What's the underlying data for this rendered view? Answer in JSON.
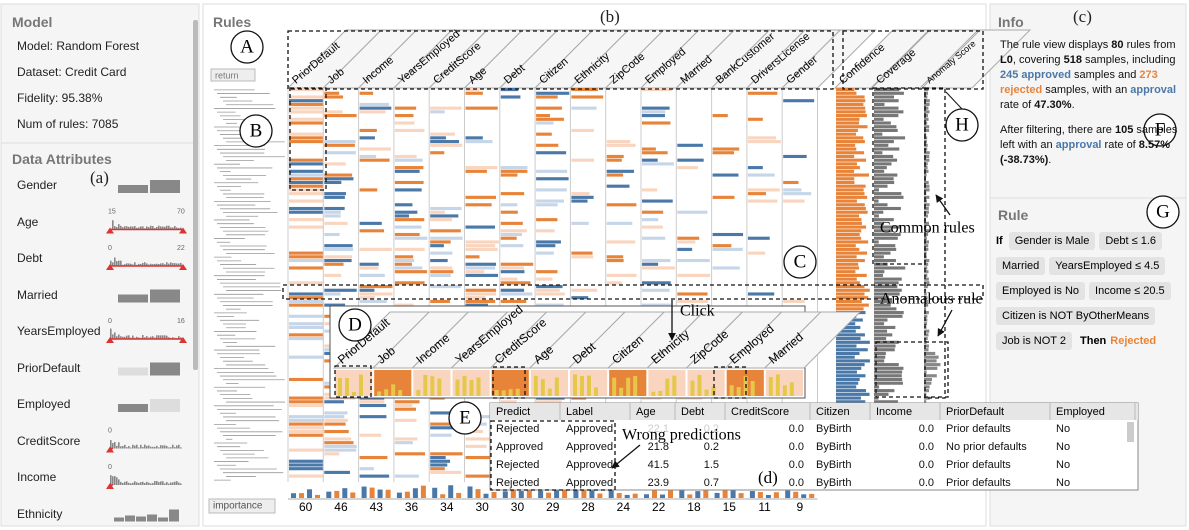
{
  "model": {
    "title": "Model",
    "lines": [
      "Model: Random Forest",
      "Dataset: Credit Card",
      "Fidelity: 95.38%",
      "Num of rules: 7085"
    ]
  },
  "data_attributes": {
    "title": "Data Attributes",
    "marker": "(a)",
    "items": [
      {
        "name": "Gender"
      },
      {
        "name": "Age",
        "min": 15,
        "max": 70
      },
      {
        "name": "Debt",
        "min": 0,
        "max": 22
      },
      {
        "name": "Married"
      },
      {
        "name": "YearsEmployed",
        "min": 0,
        "max": 16
      },
      {
        "name": "PriorDefault"
      },
      {
        "name": "Employed"
      },
      {
        "name": "CreditScore",
        "min": 0
      },
      {
        "name": "Income",
        "min": 0
      },
      {
        "name": "Ethnicity"
      }
    ]
  },
  "rules": {
    "title": "Rules",
    "marker": "(b)",
    "return_button": "return",
    "importance_button": "importance",
    "columns": [
      "PriorDefault",
      "Job",
      "Income",
      "YearsEmployed",
      "CreditScore",
      "Age",
      "Debt",
      "Citizen",
      "Ethnicity",
      "ZipCode",
      "Employed",
      "Married",
      "BankCustomer",
      "DriversLicense",
      "Gender"
    ],
    "metric_columns": [
      "Confidence",
      "Coverage",
      "Anomaly Score"
    ],
    "importance": [
      60,
      46,
      43,
      36,
      34,
      30,
      30,
      29,
      28,
      24,
      22,
      18,
      15,
      11,
      9
    ]
  },
  "detail": {
    "columns": [
      "PriorDefault",
      "Job",
      "Income",
      "YearsEmployed",
      "CreditScore",
      "Age",
      "Debt",
      "Citizen",
      "Ethnicity",
      "ZipCode",
      "Employed",
      "Married"
    ]
  },
  "table": {
    "marker": "(d)",
    "headers": [
      "Predict",
      "Label",
      "Age",
      "Debt",
      "CreditScore",
      "Citizen",
      "Income",
      "PriorDefault",
      "Employed"
    ],
    "rows": [
      [
        "Rejected",
        "Approved",
        "22.1",
        "0.2",
        "0.0",
        "ByBirth",
        "0.0",
        "Prior defaults",
        "No"
      ],
      [
        "Approved",
        "Approved",
        "21.8",
        "0.2",
        "0.0",
        "ByBirth",
        "0.0",
        "No prior defaults",
        "No"
      ],
      [
        "Rejected",
        "Approved",
        "41.5",
        "1.5",
        "0.0",
        "ByBirth",
        "0.0",
        "Prior defaults",
        "No"
      ],
      [
        "Rejected",
        "Approved",
        "23.9",
        "0.7",
        "0.0",
        "ByBirth",
        "0.0",
        "Prior defaults",
        "No"
      ]
    ]
  },
  "info": {
    "title": "Info",
    "marker": "(c)",
    "paragraphs": [
      [
        {
          "text": "The rule view displays "
        },
        {
          "text": "80",
          "style": "bold"
        },
        {
          "text": " rules from "
        },
        {
          "text": "L0",
          "style": "bold"
        },
        {
          "text": ", covering "
        },
        {
          "text": "518",
          "style": "bold"
        },
        {
          "text": " samples, including "
        },
        {
          "text": "245 approved",
          "style": "approved"
        },
        {
          "text": " samples and "
        },
        {
          "text": "273 rejected",
          "style": "rejected"
        },
        {
          "text": " samples, with an "
        },
        {
          "text": "approval",
          "style": "approved"
        },
        {
          "text": " rate of "
        },
        {
          "text": "47.30%",
          "style": "bold"
        },
        {
          "text": "."
        }
      ],
      [
        {
          "text": "After filtering, there are "
        },
        {
          "text": "105",
          "style": "bold"
        },
        {
          "text": " samples left with an "
        },
        {
          "text": "approval",
          "style": "approved"
        },
        {
          "text": " rate of "
        },
        {
          "text": "8.57% (-38.73%)",
          "style": "bold"
        },
        {
          "text": "."
        }
      ]
    ]
  },
  "rule": {
    "title": "Rule",
    "if": "If",
    "conditions": [
      "Gender is Male",
      "Debt ≤ 1.6",
      "Married",
      "YearsEmployed ≤ 4.5",
      "Employed is No",
      "Income ≤ 20.5",
      "Citizen is NOT ByOtherMeans",
      "Job is NOT 2"
    ],
    "then": "Then",
    "outcome": "Rejected"
  },
  "annotations": {
    "letters": [
      "A",
      "B",
      "C",
      "D",
      "E",
      "F",
      "G",
      "H"
    ],
    "click": "Click",
    "common_rules": "Common rules",
    "anomalous_rule": "Anomalous rule",
    "wrong_predictions": "Wrong predictions"
  }
}
